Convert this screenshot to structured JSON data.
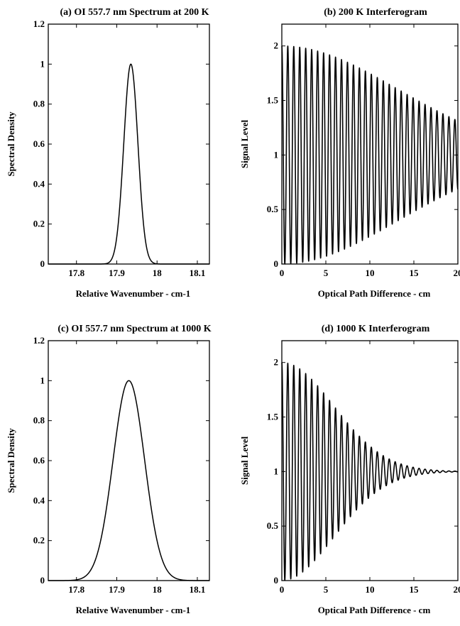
{
  "chart_data": [
    {
      "panel": "a",
      "type": "line",
      "title": "(a) OI 557.7 nm Spectrum at 200 K",
      "xlabel": "Relative Wavenumber - cm-1",
      "ylabel": "Spectral Density",
      "xlim": [
        17.73,
        18.13
      ],
      "ylim": [
        0,
        1.2
      ],
      "xticks": [
        {
          "v": 17.8,
          "label": "17.8"
        },
        {
          "v": 17.9,
          "label": "17.9"
        },
        {
          "v": 18.0,
          "label": "18"
        },
        {
          "v": 18.1,
          "label": "18.1"
        }
      ],
      "yticks": [
        {
          "v": 0,
          "label": "0"
        },
        {
          "v": 0.2,
          "label": "0.2"
        },
        {
          "v": 0.4,
          "label": "0.4"
        },
        {
          "v": 0.6,
          "label": "0.6"
        },
        {
          "v": 0.8,
          "label": "0.8"
        },
        {
          "v": 1.0,
          "label": "1"
        },
        {
          "v": 1.2,
          "label": "1.2"
        }
      ],
      "gaussian": {
        "center": 17.935,
        "sigma": 0.0175,
        "peak": 1.0
      }
    },
    {
      "panel": "b",
      "type": "line",
      "title": "(b) 200 K Interferogram",
      "xlabel": "Optical Path Difference - cm",
      "ylabel": "Signal Level",
      "xlim": [
        0,
        20
      ],
      "ylim": [
        0,
        2.2
      ],
      "xticks": [
        {
          "v": 0,
          "label": "0"
        },
        {
          "v": 5,
          "label": "5"
        },
        {
          "v": 10,
          "label": "10"
        },
        {
          "v": 15,
          "label": "15"
        },
        {
          "v": 20,
          "label": "20"
        }
      ],
      "yticks": [
        {
          "v": 0,
          "label": "0"
        },
        {
          "v": 0.5,
          "label": "0.5"
        },
        {
          "v": 1.0,
          "label": "1"
        },
        {
          "v": 1.5,
          "label": "1.5"
        },
        {
          "v": 2.0,
          "label": "2"
        }
      ],
      "interferogram": {
        "periods": 29.5,
        "decay": 0.0029
      }
    },
    {
      "panel": "c",
      "type": "line",
      "title": "(c) OI 557.7 nm Spectrum at 1000 K",
      "xlabel": "Relative Wavenumber - cm-1",
      "ylabel": "Spectral Density",
      "xlim": [
        17.73,
        18.13
      ],
      "ylim": [
        0,
        1.2
      ],
      "xticks": [
        {
          "v": 17.8,
          "label": "17.8"
        },
        {
          "v": 17.9,
          "label": "17.9"
        },
        {
          "v": 18.0,
          "label": "18"
        },
        {
          "v": 18.1,
          "label": "18.1"
        }
      ],
      "yticks": [
        {
          "v": 0,
          "label": "0"
        },
        {
          "v": 0.2,
          "label": "0.2"
        },
        {
          "v": 0.4,
          "label": "0.4"
        },
        {
          "v": 0.6,
          "label": "0.6"
        },
        {
          "v": 0.8,
          "label": "0.8"
        },
        {
          "v": 1.0,
          "label": "1"
        },
        {
          "v": 1.2,
          "label": "1.2"
        }
      ],
      "gaussian": {
        "center": 17.93,
        "sigma": 0.039,
        "peak": 1.0
      }
    },
    {
      "panel": "d",
      "type": "line",
      "title": "(d) 1000 K Interferogram",
      "xlabel": "Optical Path Difference - cm",
      "ylabel": "Signal Level",
      "xlim": [
        0,
        20
      ],
      "ylim": [
        0,
        2.2
      ],
      "xticks": [
        {
          "v": 0,
          "label": "0"
        },
        {
          "v": 5,
          "label": "5"
        },
        {
          "v": 10,
          "label": "10"
        },
        {
          "v": 15,
          "label": "15"
        },
        {
          "v": 20,
          "label": "20"
        }
      ],
      "yticks": [
        {
          "v": 0,
          "label": "0"
        },
        {
          "v": 0.5,
          "label": "0.5"
        },
        {
          "v": 1.0,
          "label": "1"
        },
        {
          "v": 1.5,
          "label": "1.5"
        },
        {
          "v": 2.0,
          "label": "2"
        }
      ],
      "interferogram": {
        "periods": 29.5,
        "decay": 0.0145
      }
    }
  ]
}
